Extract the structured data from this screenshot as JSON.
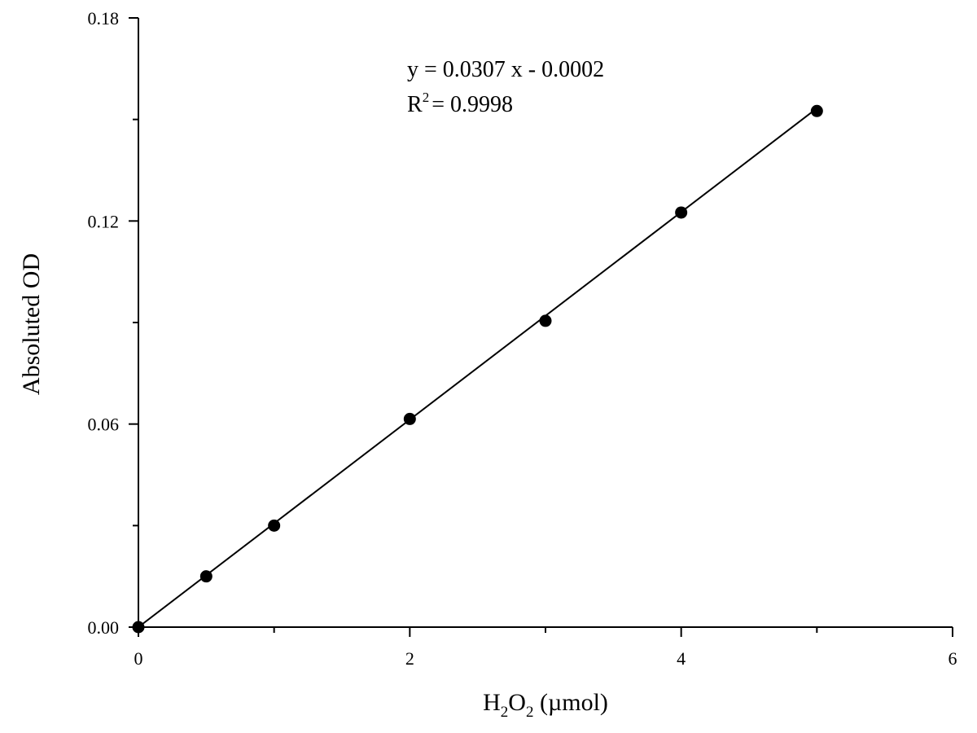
{
  "chart_data": {
    "type": "scatter",
    "x": [
      0,
      0.5,
      1,
      2,
      3,
      4,
      5
    ],
    "y": [
      0.0,
      0.015,
      0.03,
      0.0615,
      0.0905,
      0.1225,
      0.1525
    ],
    "xlim": [
      0,
      6
    ],
    "ylim": [
      0,
      0.18
    ],
    "x_ticks": [
      0,
      2,
      4,
      6
    ],
    "x_tick_labels": [
      "0",
      "2",
      "4",
      "6"
    ],
    "x_minor_ticks": [
      1,
      3,
      5
    ],
    "y_ticks": [
      0,
      0.06,
      0.12,
      0.18
    ],
    "y_tick_labels": [
      "0.00",
      "0.06",
      "0.12",
      "0.18"
    ],
    "y_minor_ticks": [
      0.03,
      0.09,
      0.15
    ],
    "xlabel": {
      "h": "H",
      "sub1": "2",
      "o": "O",
      "sub2": "2",
      "rest": " (µmol)"
    },
    "ylabel": "Absoluted OD",
    "fit": {
      "slope": 0.0307,
      "intercept": -0.0002,
      "x_range": [
        0,
        5
      ]
    },
    "equation": "y = 0.0307 x - 0.0002",
    "r2": {
      "prefix": "R",
      "sup": "2",
      "rest": "= 0.9998"
    },
    "grid": false,
    "point_color": "#000000",
    "line_color": "#000000"
  }
}
